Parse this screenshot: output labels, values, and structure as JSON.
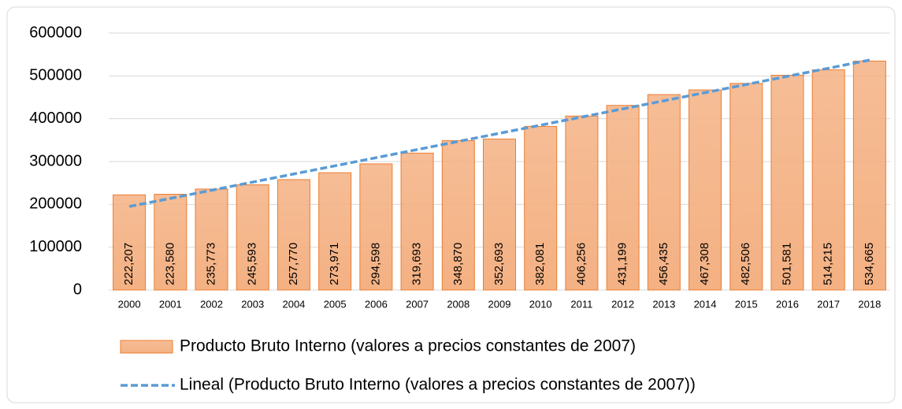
{
  "chart_data": {
    "type": "bar",
    "categories": [
      "2000",
      "2001",
      "2002",
      "2003",
      "2004",
      "2005",
      "2006",
      "2007",
      "2008",
      "2009",
      "2010",
      "2011",
      "2012",
      "2013",
      "2014",
      "2015",
      "2016",
      "2017",
      "2018"
    ],
    "series": [
      {
        "name": "Producto Bruto Interno (valores a precios constantes de 2007)",
        "color": "#f4b183",
        "edge": "#ed7d31",
        "values": [
          222207,
          223580,
          235773,
          245593,
          257770,
          273971,
          294598,
          319693,
          348870,
          352693,
          382081,
          406256,
          431199,
          456435,
          467308,
          482506,
          501581,
          514215,
          534665
        ],
        "value_labels": [
          "222,207",
          "223,580",
          "235,773",
          "245,593",
          "257,770",
          "273,971",
          "294,598",
          "319,693",
          "348,870",
          "352,693",
          "382,081",
          "406,256",
          "431,199",
          "456,435",
          "467,308",
          "482,506",
          "501,581",
          "514,215",
          "534,665"
        ]
      },
      {
        "name": "Lineal (Producto Bruto Interno (valores a precios constantes de 2007))",
        "type": "line",
        "color": "#5b9bd5",
        "dashed": true,
        "values": [
          195000,
          214000,
          233000,
          252000,
          271000,
          290000,
          309000,
          328000,
          347000,
          366000,
          385000,
          404000,
          423000,
          442000,
          461000,
          480000,
          499000,
          518000,
          537000
        ]
      }
    ],
    "ylim": [
      0,
      600000
    ],
    "yticks": [
      0,
      100000,
      200000,
      300000,
      400000,
      500000,
      600000
    ],
    "grid": true
  }
}
